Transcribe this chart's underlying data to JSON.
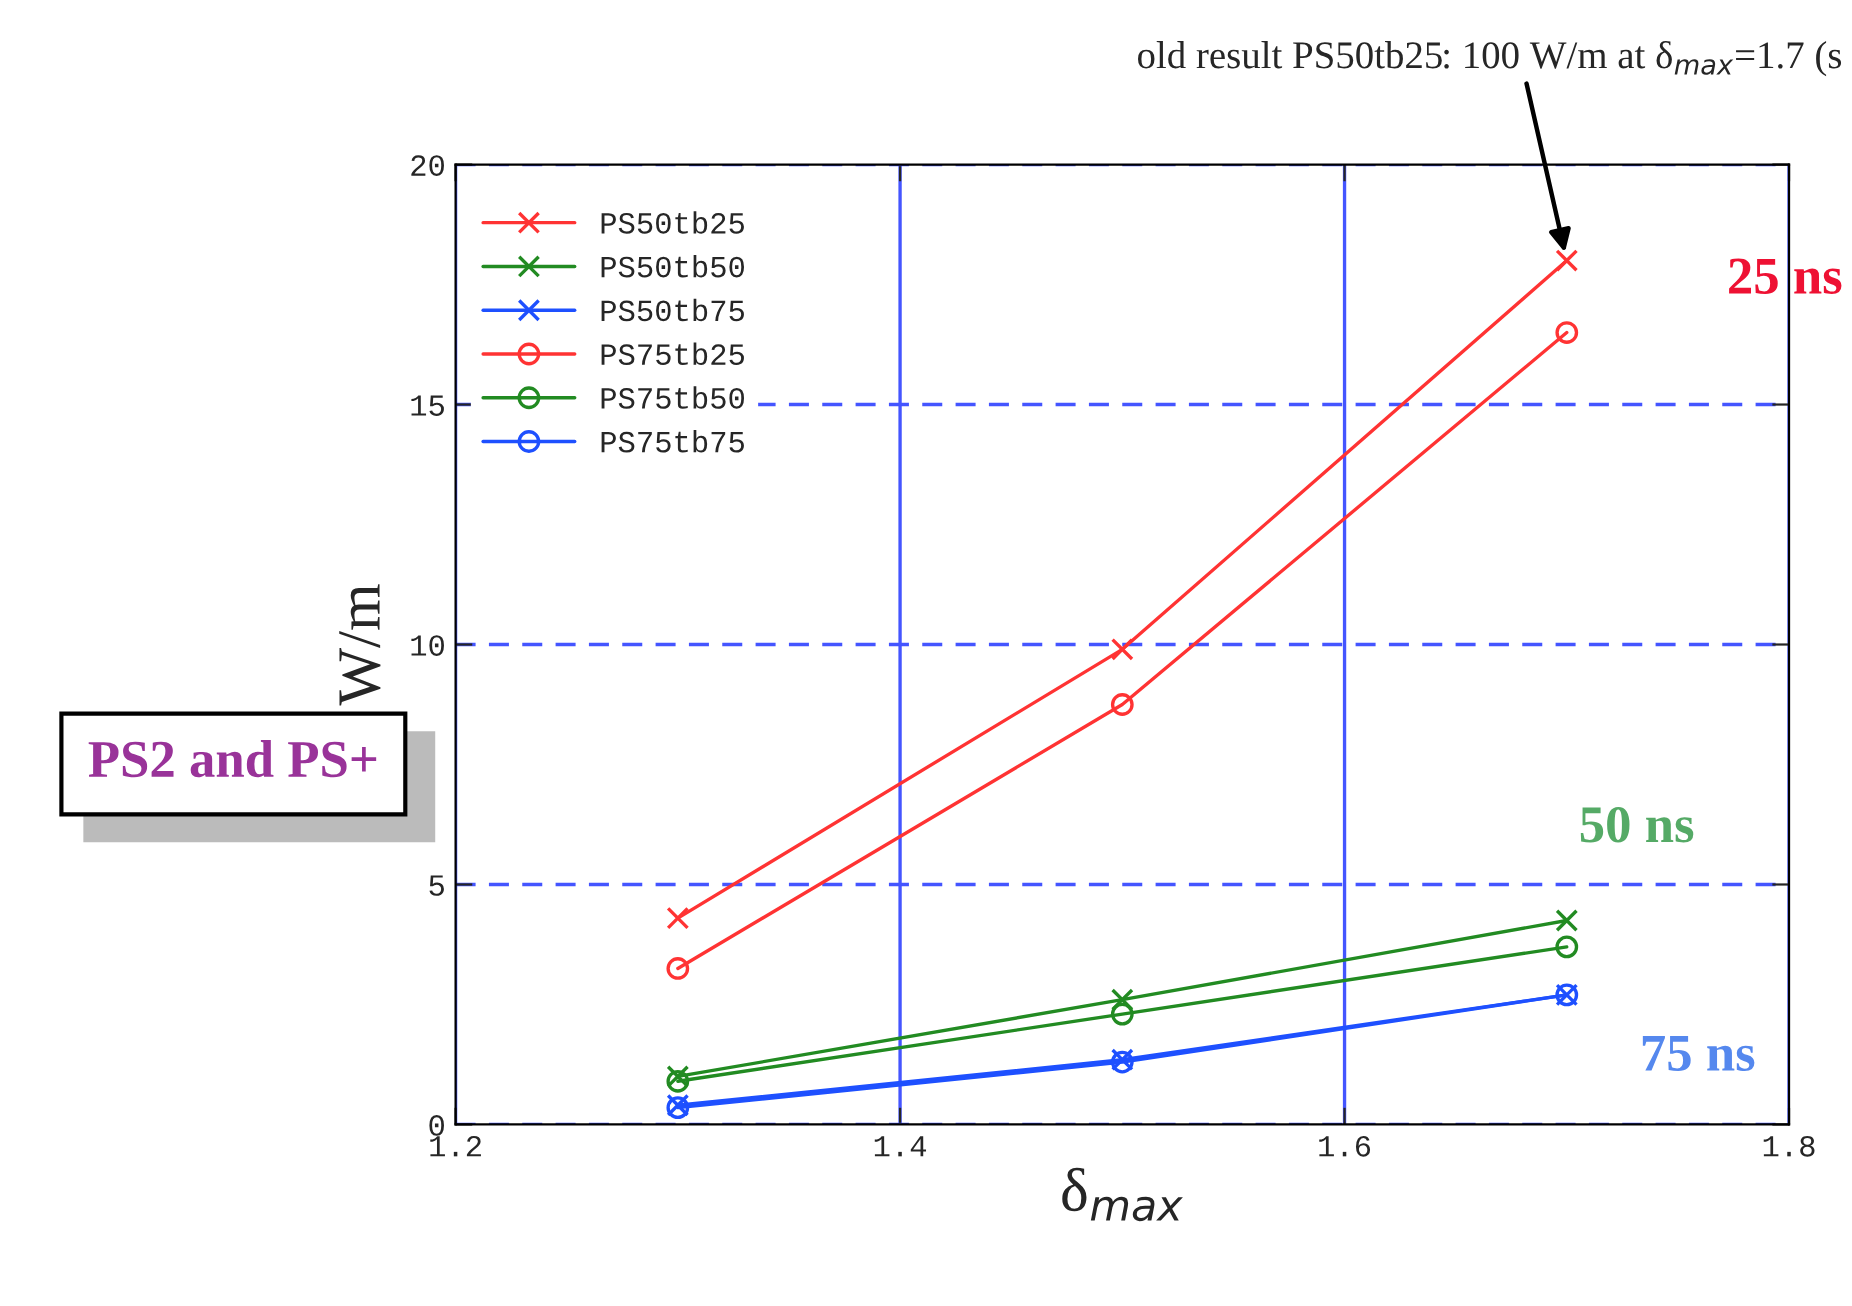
{
  "chart_data": {
    "type": "line",
    "xlabel": "δ$_{max}$",
    "ylabel": "W/m",
    "x": [
      1.3,
      1.5,
      1.7
    ],
    "series": [
      {
        "name": "PS50tb25",
        "color": "#ff3333",
        "marker": "cross",
        "values": [
          4.3,
          9.9,
          18.0
        ]
      },
      {
        "name": "PS50tb50",
        "color": "#228b22",
        "marker": "cross",
        "values": [
          1.0,
          2.6,
          4.25
        ]
      },
      {
        "name": "PS50tb75",
        "color": "#1e50ff",
        "marker": "cross",
        "values": [
          0.4,
          1.35,
          2.7
        ]
      },
      {
        "name": "PS75tb25",
        "color": "#ff3333",
        "marker": "circle",
        "values": [
          3.25,
          8.75,
          16.5
        ]
      },
      {
        "name": "PS75tb50",
        "color": "#228b22",
        "marker": "circle",
        "values": [
          0.9,
          2.3,
          3.7
        ]
      },
      {
        "name": "PS75tb75",
        "color": "#1e50ff",
        "marker": "circle",
        "values": [
          0.35,
          1.3,
          2.7
        ]
      }
    ],
    "xlim": [
      1.2,
      1.8
    ],
    "xticks": [
      1.2,
      1.4,
      1.6,
      1.8
    ],
    "ylim": [
      0,
      20
    ],
    "yticks": [
      0,
      5,
      10,
      15,
      20
    ],
    "grid": true,
    "legend": "top left",
    "line_style": "solid",
    "annotations": [
      {
        "text": "old result PS50tb25: 100 W/m at δ$_{max}$=1.7 (s",
        "x": 1.7,
        "y": 18.0
      },
      "25 ns",
      "50 ns",
      "75 ns",
      "PS2 and PS+"
    ]
  }
}
